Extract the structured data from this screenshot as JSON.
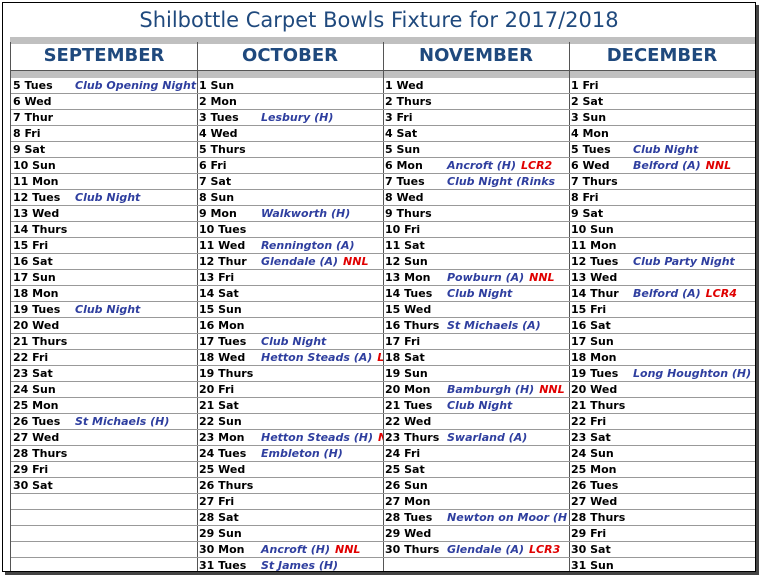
{
  "title": "Shilbottle Carpet Bowls Fixture for 2017/2018",
  "months": [
    {
      "name": "SEPTEMBER",
      "days": [
        {
          "day": "5 Tues",
          "event": "Club Opening Night"
        },
        {
          "day": "6 Wed"
        },
        {
          "day": "7 Thur"
        },
        {
          "day": "8 Fri"
        },
        {
          "day": "9 Sat"
        },
        {
          "day": "10 Sun"
        },
        {
          "day": "11 Mon"
        },
        {
          "day": "12 Tues",
          "event": "Club Night"
        },
        {
          "day": "13 Wed"
        },
        {
          "day": "14 Thurs"
        },
        {
          "day": "15 Fri"
        },
        {
          "day": "16 Sat"
        },
        {
          "day": "17 Sun"
        },
        {
          "day": "18 Mon"
        },
        {
          "day": "19 Tues",
          "event": "Club Night"
        },
        {
          "day": "20 Wed"
        },
        {
          "day": "21 Thurs"
        },
        {
          "day": "22 Fri"
        },
        {
          "day": "23 Sat"
        },
        {
          "day": "24 Sun"
        },
        {
          "day": "25 Mon"
        },
        {
          "day": "26 Tues",
          "event": "St Michaels (H)"
        },
        {
          "day": "27 Wed"
        },
        {
          "day": "28 Thurs"
        },
        {
          "day": "29 Fri"
        },
        {
          "day": "30 Sat"
        }
      ]
    },
    {
      "name": "OCTOBER",
      "days": [
        {
          "day": "1 Sun"
        },
        {
          "day": "2 Mon"
        },
        {
          "day": "3 Tues",
          "event": "Lesbury (H)"
        },
        {
          "day": "4 Wed"
        },
        {
          "day": "5 Thurs"
        },
        {
          "day": "6 Fri"
        },
        {
          "day": "7 Sat"
        },
        {
          "day": "8 Sun"
        },
        {
          "day": "9 Mon",
          "event": "Walkworth (H)"
        },
        {
          "day": "10 Tues"
        },
        {
          "day": "11 Wed",
          "event": "Rennington (A)"
        },
        {
          "day": "12 Thur",
          "event": "Glendale (A)",
          "tag": "NNL"
        },
        {
          "day": "13 Fri"
        },
        {
          "day": "14 Sat"
        },
        {
          "day": "15 Sun"
        },
        {
          "day": "16 Mon"
        },
        {
          "day": "17 Tues",
          "event": "Club Night"
        },
        {
          "day": "18 Wed",
          "event": "Hetton Steads (A)",
          "tag": "LCR"
        },
        {
          "day": "19 Thurs"
        },
        {
          "day": "20 Fri"
        },
        {
          "day": "21 Sat"
        },
        {
          "day": "22 Sun"
        },
        {
          "day": "23 Mon",
          "event": "Hetton Steads (H)",
          "tag": "NNL"
        },
        {
          "day": "24 Tues",
          "event": "Embleton (H)"
        },
        {
          "day": "25 Wed"
        },
        {
          "day": "26 Thurs"
        },
        {
          "day": "27 Fri"
        },
        {
          "day": "28 Sat"
        },
        {
          "day": "29 Sun"
        },
        {
          "day": "30 Mon",
          "event": "Ancroft (H)",
          "tag": "NNL"
        },
        {
          "day": "31 Tues",
          "event": "St James (H)"
        }
      ]
    },
    {
      "name": "NOVEMBER",
      "days": [
        {
          "day": "1 Wed"
        },
        {
          "day": "2 Thurs"
        },
        {
          "day": "3 Fri"
        },
        {
          "day": "4 Sat"
        },
        {
          "day": "5 Sun"
        },
        {
          "day": "6 Mon",
          "event": "Ancroft (H)",
          "tag": "LCR2"
        },
        {
          "day": "7 Tues",
          "event": "Club Night (Rinks"
        },
        {
          "day": "8 Wed"
        },
        {
          "day": "9 Thurs"
        },
        {
          "day": "10 Fri"
        },
        {
          "day": "11 Sat"
        },
        {
          "day": "12 Sun"
        },
        {
          "day": "13 Mon",
          "event": "Powburn (A)",
          "tag": "NNL"
        },
        {
          "day": "14 Tues",
          "event": "Club Night"
        },
        {
          "day": "15 Wed"
        },
        {
          "day": "16 Thurs",
          "event": "St Michaels (A)"
        },
        {
          "day": "17 Fri"
        },
        {
          "day": "18 Sat"
        },
        {
          "day": "19 Sun"
        },
        {
          "day": "20 Mon",
          "event": "Bamburgh (H)",
          "tag": "NNL"
        },
        {
          "day": "21 Tues",
          "event": "Club Night"
        },
        {
          "day": "22 Wed"
        },
        {
          "day": "23 Thurs",
          "event": "Swarland (A)"
        },
        {
          "day": "24 Fri"
        },
        {
          "day": "25 Sat"
        },
        {
          "day": "26 Sun"
        },
        {
          "day": "27 Mon"
        },
        {
          "day": "28 Tues",
          "event": "Newton on Moor (H"
        },
        {
          "day": "29 Wed"
        },
        {
          "day": "30 Thurs",
          "event": "Glendale (A)",
          "tag": "LCR3"
        }
      ]
    },
    {
      "name": "DECEMBER",
      "days": [
        {
          "day": "1 Fri"
        },
        {
          "day": "2 Sat"
        },
        {
          "day": "3 Sun"
        },
        {
          "day": "4 Mon"
        },
        {
          "day": "5 Tues",
          "event": "Club Night"
        },
        {
          "day": "6 Wed",
          "event": "Belford (A)",
          "tag": "NNL"
        },
        {
          "day": "7 Thurs"
        },
        {
          "day": "8 Fri"
        },
        {
          "day": "9 Sat"
        },
        {
          "day": "10 Sun"
        },
        {
          "day": "11 Mon"
        },
        {
          "day": "12 Tues",
          "event": "Club Party Night"
        },
        {
          "day": "13 Wed"
        },
        {
          "day": "14 Thur",
          "event": "Belford (A)",
          "tag": "LCR4"
        },
        {
          "day": "15 Fri"
        },
        {
          "day": "16 Sat"
        },
        {
          "day": "17 Sun"
        },
        {
          "day": "18 Mon"
        },
        {
          "day": "19 Tues",
          "event": "Long Houghton (H)"
        },
        {
          "day": "20 Wed"
        },
        {
          "day": "21 Thurs"
        },
        {
          "day": "22 Fri"
        },
        {
          "day": "23 Sat"
        },
        {
          "day": "24 Sun"
        },
        {
          "day": "25 Mon"
        },
        {
          "day": "26 Tues"
        },
        {
          "day": "27 Wed"
        },
        {
          "day": "28 Thurs"
        },
        {
          "day": "29 Fri"
        },
        {
          "day": "30 Sat"
        },
        {
          "day": "31 Sun"
        }
      ]
    }
  ]
}
